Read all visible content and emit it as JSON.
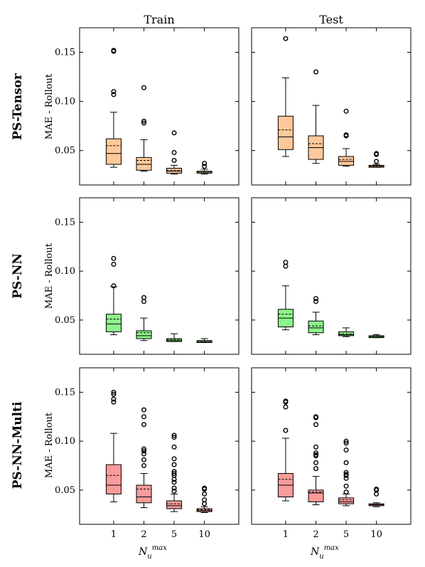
{
  "figure": {
    "columns": [
      "Train",
      "Test"
    ],
    "rows": [
      "PS-Tensor",
      "PS-NN",
      "PS-NN-Multi"
    ],
    "ylabel": "MAE - Rollout",
    "xlabel": {
      "base": "N",
      "sub": "u",
      "sup": "max"
    },
    "yticks": [
      "0.05",
      "0.10",
      "0.15"
    ],
    "xticks": [
      "1",
      "2",
      "5",
      "10"
    ],
    "colors": {
      "PS-Tensor": "#fdc99a",
      "PS-NN": "#8cf58c",
      "PS-NN-Multi": "#f99b9b",
      "edge": "#000000"
    }
  },
  "chart_data": [
    {
      "type": "box",
      "row": "PS-Tensor",
      "column": "Train",
      "ylim": [
        0.015,
        0.175
      ],
      "categories": [
        "1",
        "2",
        "5",
        "10"
      ],
      "boxes": [
        {
          "whislo": 0.033,
          "q1": 0.036,
          "med": 0.047,
          "mean": 0.055,
          "q3": 0.062,
          "whishi": 0.089,
          "fliers": [
            0.107,
            0.11,
            0.151,
            0.152
          ]
        },
        {
          "whislo": 0.029,
          "q1": 0.03,
          "med": 0.036,
          "mean": 0.04,
          "q3": 0.043,
          "whishi": 0.061,
          "fliers": [
            0.078,
            0.08,
            0.114
          ]
        },
        {
          "whislo": 0.026,
          "q1": 0.027,
          "med": 0.029,
          "mean": 0.03,
          "q3": 0.032,
          "whishi": 0.035,
          "fliers": [
            0.04,
            0.048,
            0.068
          ]
        },
        {
          "whislo": 0.026,
          "q1": 0.027,
          "med": 0.028,
          "mean": 0.028,
          "q3": 0.029,
          "whishi": 0.031,
          "fliers": [
            0.034,
            0.037
          ]
        }
      ]
    },
    {
      "type": "box",
      "row": "PS-Tensor",
      "column": "Test",
      "ylim": [
        0.015,
        0.175
      ],
      "categories": [
        "1",
        "2",
        "5",
        "10"
      ],
      "boxes": [
        {
          "whislo": 0.044,
          "q1": 0.051,
          "med": 0.064,
          "mean": 0.071,
          "q3": 0.085,
          "whishi": 0.124,
          "fliers": [
            0.164
          ]
        },
        {
          "whislo": 0.037,
          "q1": 0.041,
          "med": 0.053,
          "mean": 0.057,
          "q3": 0.065,
          "whishi": 0.096,
          "fliers": [
            0.13
          ]
        },
        {
          "whislo": 0.034,
          "q1": 0.035,
          "med": 0.039,
          "mean": 0.041,
          "q3": 0.044,
          "whishi": 0.052,
          "fliers": [
            0.065,
            0.066,
            0.09
          ]
        },
        {
          "whislo": 0.033,
          "q1": 0.033,
          "med": 0.034,
          "mean": 0.034,
          "q3": 0.035,
          "whishi": 0.036,
          "fliers": [
            0.039,
            0.046,
            0.047
          ]
        }
      ]
    },
    {
      "type": "box",
      "row": "PS-NN",
      "column": "Train",
      "ylim": [
        0.015,
        0.175
      ],
      "categories": [
        "1",
        "2",
        "5",
        "10"
      ],
      "boxes": [
        {
          "whislo": 0.035,
          "q1": 0.038,
          "med": 0.046,
          "mean": 0.051,
          "q3": 0.056,
          "whishi": 0.084,
          "fliers": [
            0.085,
            0.107,
            0.113
          ]
        },
        {
          "whislo": 0.029,
          "q1": 0.031,
          "med": 0.034,
          "mean": 0.037,
          "q3": 0.039,
          "whishi": 0.052,
          "fliers": [
            0.069,
            0.073
          ]
        },
        {
          "whislo": 0.028,
          "q1": 0.028,
          "med": 0.029,
          "mean": 0.03,
          "q3": 0.031,
          "whishi": 0.036,
          "fliers": []
        },
        {
          "whislo": 0.027,
          "q1": 0.027,
          "med": 0.028,
          "mean": 0.028,
          "q3": 0.029,
          "whishi": 0.031,
          "fliers": []
        }
      ]
    },
    {
      "type": "box",
      "row": "PS-NN",
      "column": "Test",
      "ylim": [
        0.015,
        0.175
      ],
      "categories": [
        "1",
        "2",
        "5",
        "10"
      ],
      "boxes": [
        {
          "whislo": 0.04,
          "q1": 0.043,
          "med": 0.052,
          "mean": 0.056,
          "q3": 0.061,
          "whishi": 0.085,
          "fliers": [
            0.105,
            0.109
          ]
        },
        {
          "whislo": 0.035,
          "q1": 0.037,
          "med": 0.042,
          "mean": 0.044,
          "q3": 0.049,
          "whishi": 0.058,
          "fliers": [
            0.069,
            0.072
          ]
        },
        {
          "whislo": 0.033,
          "q1": 0.034,
          "med": 0.035,
          "mean": 0.036,
          "q3": 0.038,
          "whishi": 0.042,
          "fliers": []
        },
        {
          "whislo": 0.032,
          "q1": 0.032,
          "med": 0.033,
          "mean": 0.033,
          "q3": 0.034,
          "whishi": 0.035,
          "fliers": []
        }
      ]
    },
    {
      "type": "box",
      "row": "PS-NN-Multi",
      "column": "Train",
      "ylim": [
        0.015,
        0.175
      ],
      "categories": [
        "1",
        "2",
        "5",
        "10"
      ],
      "boxes": [
        {
          "whislo": 0.038,
          "q1": 0.046,
          "med": 0.055,
          "mean": 0.065,
          "q3": 0.076,
          "whishi": 0.108,
          "fliers": [
            0.14,
            0.143,
            0.148,
            0.15
          ]
        },
        {
          "whislo": 0.032,
          "q1": 0.037,
          "med": 0.043,
          "mean": 0.051,
          "q3": 0.055,
          "whishi": 0.067,
          "fliers": [
            0.075,
            0.081,
            0.087,
            0.09,
            0.092,
            0.117,
            0.125,
            0.132
          ]
        },
        {
          "whislo": 0.028,
          "q1": 0.031,
          "med": 0.034,
          "mean": 0.036,
          "q3": 0.039,
          "whishi": 0.046,
          "fliers": [
            0.049,
            0.052,
            0.058,
            0.061,
            0.065,
            0.067,
            0.069,
            0.076,
            0.082,
            0.094,
            0.104,
            0.106
          ]
        },
        {
          "whislo": 0.027,
          "q1": 0.028,
          "med": 0.029,
          "mean": 0.03,
          "q3": 0.031,
          "whishi": 0.033,
          "fliers": [
            0.036,
            0.04,
            0.046,
            0.051,
            0.052
          ]
        }
      ]
    },
    {
      "type": "box",
      "row": "PS-NN-Multi",
      "column": "Test",
      "ylim": [
        0.015,
        0.175
      ],
      "categories": [
        "1",
        "2",
        "5",
        "10"
      ],
      "boxes": [
        {
          "whislo": 0.039,
          "q1": 0.043,
          "med": 0.055,
          "mean": 0.061,
          "q3": 0.067,
          "whishi": 0.103,
          "fliers": [
            0.111,
            0.135,
            0.14,
            0.141
          ]
        },
        {
          "whislo": 0.035,
          "q1": 0.038,
          "med": 0.047,
          "mean": 0.048,
          "q3": 0.05,
          "whishi": 0.064,
          "fliers": [
            0.072,
            0.078,
            0.085,
            0.086,
            0.088,
            0.094,
            0.117,
            0.124,
            0.125
          ]
        },
        {
          "whislo": 0.034,
          "q1": 0.036,
          "med": 0.038,
          "mean": 0.04,
          "q3": 0.042,
          "whishi": 0.046,
          "fliers": [
            0.048,
            0.054,
            0.062,
            0.065,
            0.066,
            0.068,
            0.078,
            0.091,
            0.098,
            0.1
          ]
        },
        {
          "whislo": 0.033,
          "q1": 0.034,
          "med": 0.035,
          "mean": 0.035,
          "q3": 0.036,
          "whishi": 0.037,
          "fliers": [
            0.046,
            0.05,
            0.051
          ]
        }
      ]
    }
  ]
}
